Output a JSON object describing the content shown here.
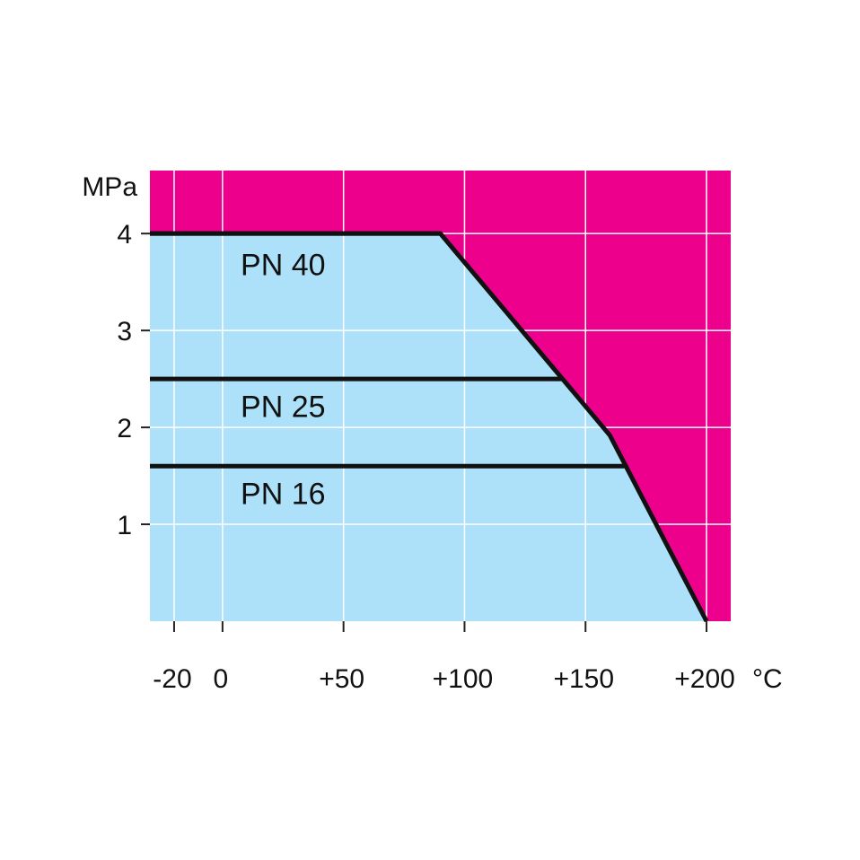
{
  "chart_data": {
    "type": "area",
    "title": "",
    "xlabel": "°C",
    "ylabel": "MPa",
    "xlim": [
      -30,
      210
    ],
    "ylim": [
      0,
      4.65
    ],
    "x_ticks": [
      {
        "value": -20,
        "label": "-20"
      },
      {
        "value": 0,
        "label": "0"
      },
      {
        "value": 50,
        "label": "+50"
      },
      {
        "value": 100,
        "label": "+100"
      },
      {
        "value": 150,
        "label": "+150"
      },
      {
        "value": 200,
        "label": "+200"
      }
    ],
    "y_ticks": [
      {
        "value": 1,
        "label": "1"
      },
      {
        "value": 2,
        "label": "2"
      },
      {
        "value": 3,
        "label": "3"
      },
      {
        "value": 4,
        "label": "4"
      }
    ],
    "grid": true,
    "limit_curve": {
      "x": [
        90,
        160,
        200
      ],
      "y": [
        4.0,
        1.92,
        0
      ]
    },
    "series": [
      {
        "name": "PN 40",
        "value": 4.0,
        "x_start": -30,
        "x_end": 90,
        "label_x": 25,
        "label_y": 3.68
      },
      {
        "name": "PN 25",
        "value": 2.5,
        "x_start": -30,
        "x_end": 140,
        "label_x": 25,
        "label_y": 2.22
      },
      {
        "name": "PN 16",
        "value": 1.6,
        "x_start": -30,
        "x_end": 166,
        "label_x": 25,
        "label_y": 1.32
      }
    ],
    "colors": {
      "allowed": "#ade1fa",
      "forbidden": "#ec008c",
      "grid": "#ffffff",
      "line": "#111111"
    }
  }
}
